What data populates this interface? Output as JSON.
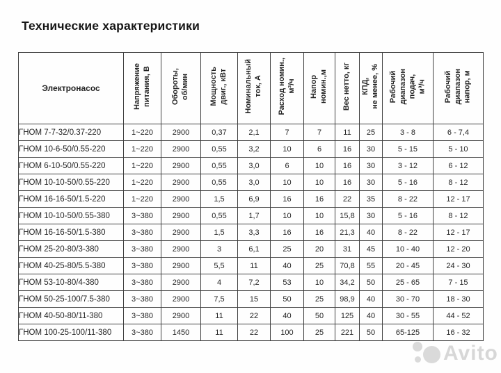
{
  "page": {
    "title": "Технические характеристики"
  },
  "table": {
    "headers": [
      "Электронасос",
      "Напряжение\nпитания, В",
      "Обороты,\nоб/мин",
      "Мощность\nдвиг., кВт",
      "Номинальный\nток, А",
      "Расход номин.,\nм³/ч",
      "Напор\nномин.,м",
      "Вес нетто, кг",
      "КПД,\nне менее, %",
      "Рабочий\nдиапазон\nподач,\nм³/ч",
      "Рабочий\nдиапазон\nнапор, м"
    ],
    "rows": [
      {
        "name": "ГНОМ 7-7-32/0.37-220",
        "values": [
          "1~220",
          "2900",
          "0,37",
          "2,1",
          "7",
          "7",
          "11",
          "25",
          "3 - 8",
          "6 - 7,4"
        ]
      },
      {
        "name": "ГНОМ 10-6-50/0.55-220",
        "values": [
          "1~220",
          "2900",
          "0,55",
          "3,2",
          "10",
          "6",
          "16",
          "30",
          "5 - 15",
          "5 - 10"
        ]
      },
      {
        "name": "ГНОМ 6-10-50/0.55-220",
        "values": [
          "1~220",
          "2900",
          "0,55",
          "3,0",
          "6",
          "10",
          "16",
          "30",
          "3 - 12",
          "6 - 12"
        ]
      },
      {
        "name": "ГНОМ 10-10-50/0.55-220",
        "values": [
          "1~220",
          "2900",
          "0,55",
          "3,0",
          "10",
          "10",
          "16",
          "30",
          "5 - 16",
          "8 - 12"
        ]
      },
      {
        "name": "ГНОМ 16-16-50/1.5-220",
        "values": [
          "1~220",
          "2900",
          "1,5",
          "6,9",
          "16",
          "16",
          "22",
          "35",
          "8 - 22",
          "12 - 17"
        ]
      },
      {
        "name": "ГНОМ 10-10-50/0.55-380",
        "values": [
          "3~380",
          "2900",
          "0,55",
          "1,7",
          "10",
          "10",
          "15,8",
          "30",
          "5 - 16",
          "8 - 12"
        ]
      },
      {
        "name": "ГНОМ 16-16-50/1.5-380",
        "values": [
          "3~380",
          "2900",
          "1,5",
          "3,3",
          "16",
          "16",
          "21,3",
          "40",
          "8 - 22",
          "12 - 17"
        ]
      },
      {
        "name": "ГНОМ 25-20-80/3-380",
        "values": [
          "3~380",
          "2900",
          "3",
          "6,1",
          "25",
          "20",
          "31",
          "45",
          "10 - 40",
          "12 - 20"
        ]
      },
      {
        "name": "ГНОМ 40-25-80/5.5-380",
        "values": [
          "3~380",
          "2900",
          "5,5",
          "11",
          "40",
          "25",
          "70,8",
          "55",
          "20 - 45",
          "24 - 30"
        ]
      },
      {
        "name": "ГНОМ 53-10-80/4-380",
        "values": [
          "3~380",
          "2900",
          "4",
          "7,2",
          "53",
          "10",
          "34,2",
          "50",
          "25 - 65",
          "7 - 15"
        ]
      },
      {
        "name": "ГНОМ 50-25-100/7.5-380",
        "values": [
          "3~380",
          "2900",
          "7,5",
          "15",
          "50",
          "25",
          "98,9",
          "40",
          "30 - 70",
          "18 - 30"
        ]
      },
      {
        "name": "ГНОМ 40-50-80/11-380",
        "values": [
          "3~380",
          "2900",
          "11",
          "22",
          "40",
          "50",
          "125",
          "40",
          "30 - 55",
          "44 - 52"
        ]
      },
      {
        "name": "ГНОМ 100-25-100/11-380",
        "values": [
          "3~380",
          "1450",
          "11",
          "22",
          "100",
          "25",
          "221",
          "50",
          "65-125",
          "16 - 32"
        ]
      }
    ]
  },
  "watermark": {
    "text": "Avito"
  },
  "colors": {
    "border": "#3f3f3f",
    "text": "#232323",
    "watermark": "#d7d7d7"
  }
}
